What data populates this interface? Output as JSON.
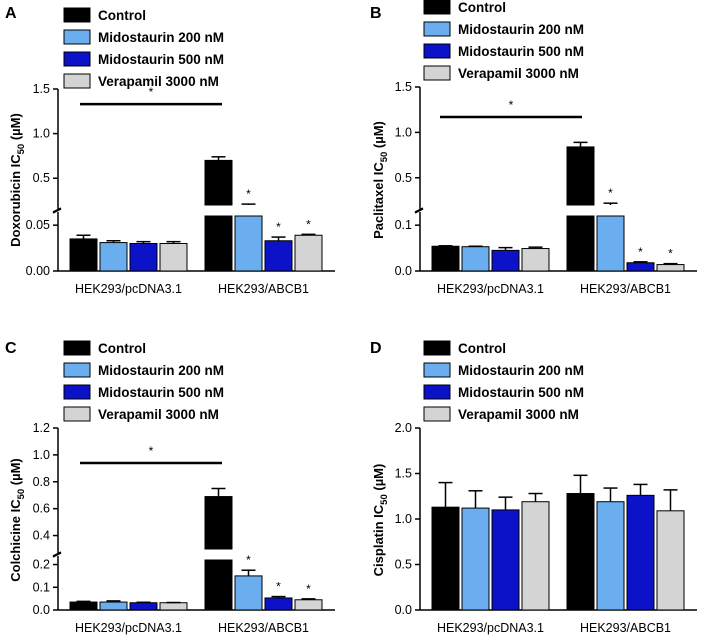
{
  "legend": [
    {
      "name": "Control",
      "color": "#000000"
    },
    {
      "name": "Midostaurin 200 nM",
      "color": "#6aaef0"
    },
    {
      "name": "Midostaurin 500 nM",
      "color": "#0c12c8"
    },
    {
      "name": "Verapamil 3000 nM",
      "color": "#d4d4d4"
    }
  ],
  "chart_data": [
    {
      "panel": "A",
      "type": "bar",
      "ylabel_main": "Doxorubicin IC",
      "ylabel_sub": "50",
      "ylabel_unit": " (µM)",
      "categories": [
        "HEK293/pcDNA3.1",
        "HEK293/ABCB1"
      ],
      "broken_axis": {
        "lower": [
          0,
          0.06
        ],
        "upper": [
          0.2,
          1.5
        ]
      },
      "lower_ticks": [
        "0.00",
        "0.05"
      ],
      "upper_ticks": [
        "0.5",
        "1.0",
        "1.5"
      ],
      "series": [
        {
          "name": "Control",
          "values": [
            0.035,
            0.7
          ],
          "errors": [
            0.004,
            0.04
          ],
          "stars": [
            false,
            false
          ]
        },
        {
          "name": "Midostaurin 200 nM",
          "values": [
            0.031,
            0.2
          ],
          "errors": [
            0.002,
            0.01
          ],
          "stars": [
            false,
            true
          ]
        },
        {
          "name": "Midostaurin 500 nM",
          "values": [
            0.03,
            0.033
          ],
          "errors": [
            0.002,
            0.004
          ],
          "stars": [
            false,
            true
          ]
        },
        {
          "name": "Verapamil 3000 nM",
          "values": [
            0.03,
            0.039
          ],
          "errors": [
            0.002,
            0.001
          ],
          "stars": [
            false,
            true
          ]
        }
      ],
      "bracket": {
        "label": "*",
        "y": 1.33
      }
    },
    {
      "panel": "B",
      "type": "bar",
      "ylabel_main": "Paclitaxel IC",
      "ylabel_sub": "50",
      "ylabel_unit": " (µM)",
      "categories": [
        "HEK293/pcDNA3.1",
        "HEK293/ABCB1"
      ],
      "broken_axis": {
        "lower": [
          0,
          0.12
        ],
        "upper": [
          0.2,
          1.5
        ]
      },
      "lower_ticks": [
        "0.0",
        "0.1"
      ],
      "upper_ticks": [
        "0.5",
        "1.0",
        "1.5"
      ],
      "series": [
        {
          "name": "Control",
          "values": [
            0.054,
            0.84
          ],
          "errors": [
            0.001,
            0.05
          ],
          "stars": [
            false,
            false
          ]
        },
        {
          "name": "Midostaurin 200 nM",
          "values": [
            0.053,
            0.2
          ],
          "errors": [
            0.001,
            0.02
          ],
          "stars": [
            false,
            true
          ]
        },
        {
          "name": "Midostaurin 500 nM",
          "values": [
            0.045,
            0.018
          ],
          "errors": [
            0.006,
            0.002
          ],
          "stars": [
            false,
            true
          ]
        },
        {
          "name": "Verapamil 3000 nM",
          "values": [
            0.049,
            0.014
          ],
          "errors": [
            0.003,
            0.002
          ],
          "stars": [
            false,
            true
          ]
        }
      ],
      "bracket": {
        "label": "*",
        "y": 1.17
      }
    },
    {
      "panel": "C",
      "type": "bar",
      "ylabel_main": "Colchicine IC",
      "ylabel_sub": "50",
      "ylabel_unit": " (µM)",
      "categories": [
        "HEK293/pcDNA3.1",
        "HEK293/ABCB1"
      ],
      "broken_axis": {
        "lower": [
          0,
          0.22
        ],
        "upper": [
          0.3,
          1.2
        ]
      },
      "lower_ticks": [
        "0.0",
        "0.1",
        "0.2"
      ],
      "upper_ticks": [
        "0.4",
        "0.6",
        "0.8",
        "1.0",
        "1.2"
      ],
      "series": [
        {
          "name": "Control",
          "values": [
            0.035,
            0.69
          ],
          "errors": [
            0.003,
            0.06
          ],
          "stars": [
            false,
            false
          ]
        },
        {
          "name": "Midostaurin 200 nM",
          "values": [
            0.035,
            0.15
          ],
          "errors": [
            0.005,
            0.025
          ],
          "stars": [
            false,
            true
          ]
        },
        {
          "name": "Midostaurin 500 nM",
          "values": [
            0.032,
            0.053
          ],
          "errors": [
            0.002,
            0.006
          ],
          "stars": [
            false,
            true
          ]
        },
        {
          "name": "Verapamil 3000 nM",
          "values": [
            0.032,
            0.045
          ],
          "errors": [
            0.001,
            0.004
          ],
          "stars": [
            false,
            true
          ]
        }
      ],
      "bracket": {
        "label": "*",
        "y": 0.94
      }
    },
    {
      "panel": "D",
      "type": "bar",
      "ylabel_main": "Cisplatin IC",
      "ylabel_sub": "50",
      "ylabel_unit": " (µM)",
      "categories": [
        "HEK293/pcDNA3.1",
        "HEK293/ABCB1"
      ],
      "ylim": [
        0,
        2.0
      ],
      "ticks": [
        "0.0",
        "0.5",
        "1.0",
        "1.5",
        "2.0"
      ],
      "series": [
        {
          "name": "Control",
          "values": [
            1.13,
            1.28
          ],
          "errors": [
            0.27,
            0.2
          ],
          "stars": [
            false,
            false
          ]
        },
        {
          "name": "Midostaurin 200 nM",
          "values": [
            1.12,
            1.19
          ],
          "errors": [
            0.19,
            0.15
          ],
          "stars": [
            false,
            false
          ]
        },
        {
          "name": "Midostaurin 500 nM",
          "values": [
            1.1,
            1.26
          ],
          "errors": [
            0.14,
            0.12
          ],
          "stars": [
            false,
            false
          ]
        },
        {
          "name": "Verapamil 3000 nM",
          "values": [
            1.19,
            1.09
          ],
          "errors": [
            0.09,
            0.23
          ],
          "stars": [
            false,
            false
          ]
        }
      ]
    }
  ]
}
